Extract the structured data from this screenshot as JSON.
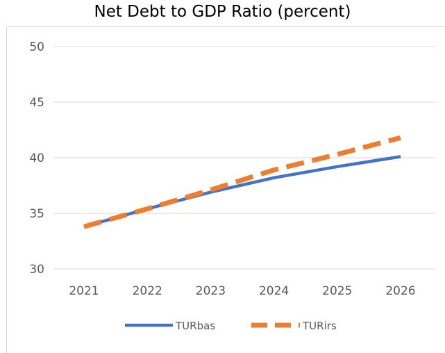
{
  "chart_data": {
    "type": "line",
    "title": "Net Debt to GDP Ratio (percent)",
    "xlabel": "",
    "ylabel": "",
    "x": [
      2021,
      2022,
      2023,
      2024,
      2025,
      2026
    ],
    "x_tick_labels": [
      "2021",
      "2022",
      "2023",
      "2024",
      "2025",
      "2026"
    ],
    "y_ticks": [
      30,
      35,
      40,
      45,
      50
    ],
    "y_tick_labels": [
      "30",
      "35",
      "40",
      "45",
      "50"
    ],
    "ylim": [
      30,
      50
    ],
    "grid": true,
    "legend_position": "bottom",
    "series": [
      {
        "name": "TURbas",
        "values": [
          33.8,
          35.4,
          36.9,
          38.2,
          39.2,
          40.1
        ],
        "color": "#4472c4",
        "line_style": "solid"
      },
      {
        "name": "TURirs",
        "values": [
          33.8,
          35.4,
          37.1,
          38.9,
          40.3,
          41.8
        ],
        "color": "#ed7d31",
        "line_style": "dashed"
      }
    ]
  }
}
